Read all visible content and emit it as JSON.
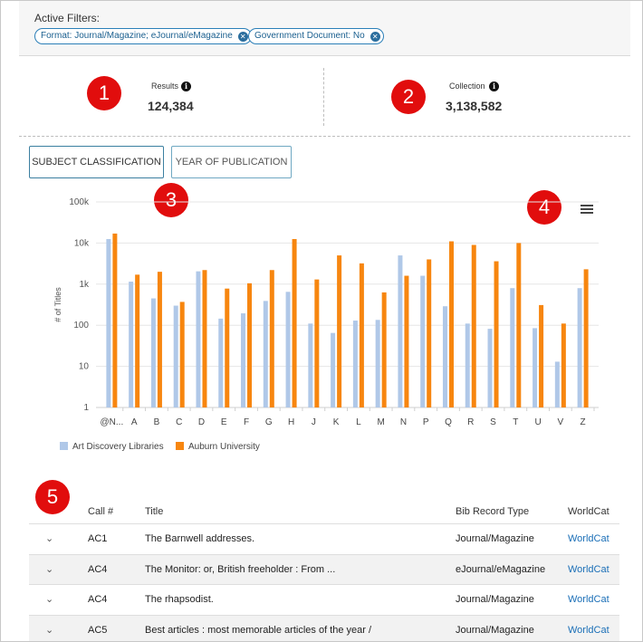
{
  "filters": {
    "label": "Active Filters:",
    "chips": [
      {
        "text": "Format: Journal/Magazine; eJournal/eMagazine"
      },
      {
        "text": "Government Document: No"
      }
    ]
  },
  "stats": {
    "results": {
      "label": "Results",
      "value": "124,384"
    },
    "collection": {
      "label": "Collection",
      "value": "3,138,582"
    }
  },
  "badges": [
    "1",
    "2",
    "3",
    "4",
    "5"
  ],
  "tabs": [
    {
      "label": "SUBJECT CLASSIFICATION",
      "active": true
    },
    {
      "label": "YEAR OF PUBLICATION",
      "active": false
    }
  ],
  "chart_data": {
    "type": "bar",
    "ylabel": "# of Titles",
    "y_scale": "log",
    "ylim": [
      1,
      100000
    ],
    "y_ticks": [
      "1",
      "10",
      "100",
      "1k",
      "10k",
      "100k"
    ],
    "grid": true,
    "legend_position": "bottom-left",
    "categories": [
      "@N...",
      "A",
      "B",
      "C",
      "D",
      "E",
      "F",
      "G",
      "H",
      "J",
      "K",
      "L",
      "M",
      "N",
      "P",
      "Q",
      "R",
      "S",
      "T",
      "U",
      "V",
      "Z"
    ],
    "series": [
      {
        "name": "Art Discovery Libraries",
        "color": "#b0c8e8",
        "values": [
          12500,
          1150,
          450,
          300,
          2050,
          145,
          195,
          390,
          650,
          110,
          65,
          130,
          135,
          5000,
          1600,
          290,
          110,
          82,
          800,
          85,
          13,
          800
        ]
      },
      {
        "name": "Auburn University",
        "color": "#f7860f",
        "values": [
          17000,
          1700,
          2000,
          370,
          2200,
          780,
          1050,
          2200,
          12500,
          1300,
          5000,
          3200,
          630,
          1600,
          4000,
          11000,
          9000,
          3600,
          10000,
          310,
          110,
          2300
        ]
      }
    ]
  },
  "table": {
    "headers": {
      "call": "Call #",
      "title": "Title",
      "type": "Bib Record Type",
      "worldcat": "WorldCat"
    },
    "rows": [
      {
        "call": "AC1",
        "title": "The Barnwell addresses.",
        "type": "Journal/Magazine",
        "worldcat": "WorldCat"
      },
      {
        "call": "AC4",
        "title": "The Monitor: or, British freeholder : From ...",
        "type": "eJournal/eMagazine",
        "worldcat": "WorldCat"
      },
      {
        "call": "AC4",
        "title": "The rhapsodist.",
        "type": "Journal/Magazine",
        "worldcat": "WorldCat"
      },
      {
        "call": "AC5",
        "title": "Best articles : most memorable articles of the year /",
        "type": "Journal/Magazine",
        "worldcat": "WorldCat"
      }
    ]
  },
  "icons": {
    "expand": "chevron-down-icon",
    "info": "info-icon",
    "menu": "hamburger-menu-icon",
    "remove": "close-icon"
  }
}
